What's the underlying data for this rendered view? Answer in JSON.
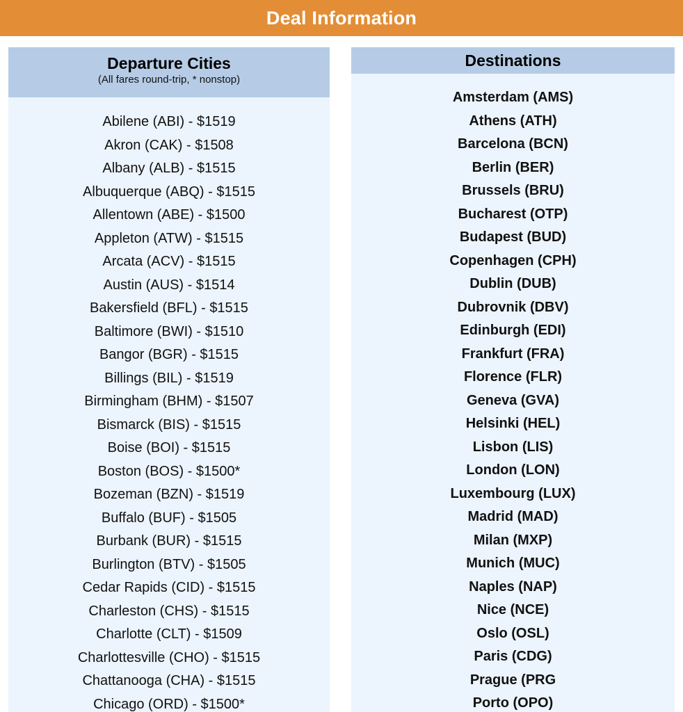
{
  "banner": {
    "title": "Deal Information"
  },
  "departures": {
    "title": "Departure Cities",
    "subtitle": "(All fares round-trip, * nonstop)",
    "items": [
      "Abilene (ABI) - $1519",
      "Akron (CAK) - $1508",
      "Albany (ALB) - $1515",
      "Albuquerque (ABQ) - $1515",
      "Allentown (ABE) - $1500",
      "Appleton (ATW) - $1515",
      "Arcata (ACV) - $1515",
      "Austin (AUS) - $1514",
      "Bakersfield (BFL) - $1515",
      "Baltimore (BWI) - $1510",
      "Bangor (BGR) - $1515",
      "Billings (BIL) - $1519",
      "Birmingham (BHM) - $1507",
      "Bismarck (BIS) - $1515",
      "Boise (BOI) - $1515",
      "Boston (BOS) - $1500*",
      "Bozeman (BZN) - $1519",
      "Buffalo (BUF) - $1505",
      "Burbank (BUR) - $1515",
      "Burlington (BTV) - $1505",
      "Cedar Rapids (CID) - $1515",
      "Charleston (CHS) - $1515",
      "Charlotte (CLT) - $1509",
      "Charlottesville (CHO) - $1515",
      "Chattanooga (CHA) - $1515",
      "Chicago (ORD) - $1500*"
    ]
  },
  "destinations": {
    "title": "Destinations",
    "items": [
      "Amsterdam (AMS)",
      "Athens (ATH)",
      "Barcelona (BCN)",
      "Berlin (BER)",
      "Brussels (BRU)",
      "Bucharest (OTP)",
      "Budapest (BUD)",
      "Copenhagen (CPH)",
      "Dublin (DUB)",
      "Dubrovnik (DBV)",
      "Edinburgh (EDI)",
      "Frankfurt (FRA)",
      "Florence (FLR)",
      "Geneva (GVA)",
      "Helsinki (HEL)",
      "Lisbon (LIS)",
      "London (LON)",
      "Luxembourg (LUX)",
      "Madrid (MAD)",
      "Milan (MXP)",
      "Munich (MUC)",
      "Naples (NAP)",
      "Nice (NCE)",
      "Oslo (OSL)",
      "Paris (CDG)",
      "Prague (PRG",
      "Porto (OPO)"
    ]
  },
  "colors": {
    "banner": "#e38d36",
    "header": "#b6cce6",
    "panel": "#ecf4fd"
  }
}
